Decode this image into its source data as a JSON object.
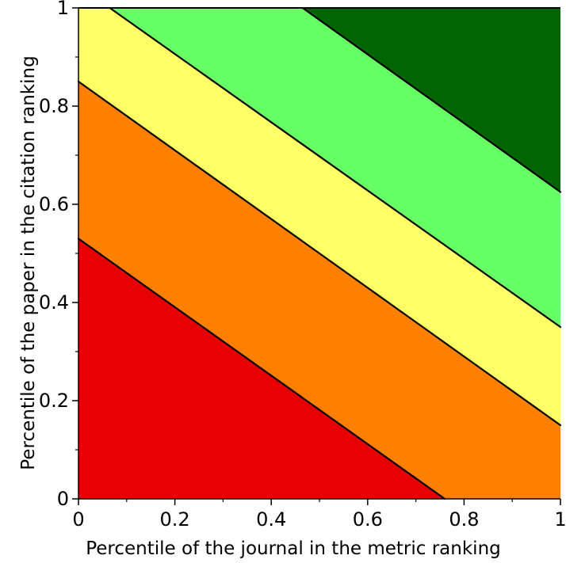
{
  "chart_data": {
    "type": "area",
    "title": "",
    "xlabel": "Percentile of the journal in the metric ranking",
    "ylabel": "Percentile of the paper in the citation ranking",
    "xlim": [
      0,
      1
    ],
    "ylim": [
      0,
      1
    ],
    "xticks": [
      "0",
      "0.2",
      "0.4",
      "0.6",
      "0.8",
      "1"
    ],
    "yticks": [
      "0",
      "0.2",
      "0.4",
      "0.6",
      "0.8",
      "1"
    ],
    "grid": false,
    "legend": "none",
    "boundaries": [
      {
        "x": [
          0,
          0.76
        ],
        "y": [
          0.53,
          0
        ]
      },
      {
        "x": [
          0,
          1
        ],
        "y": [
          0.85,
          0.15
        ]
      },
      {
        "x": [
          0.065,
          1
        ],
        "y": [
          1,
          0.35
        ]
      },
      {
        "x": [
          0.465,
          1
        ],
        "y": [
          1,
          0.625
        ]
      }
    ],
    "regions": [
      {
        "color": "#e60000"
      },
      {
        "color": "#ff8000"
      },
      {
        "color": "#ffff66"
      },
      {
        "color": "#66ff66"
      },
      {
        "color": "#006400"
      }
    ]
  }
}
